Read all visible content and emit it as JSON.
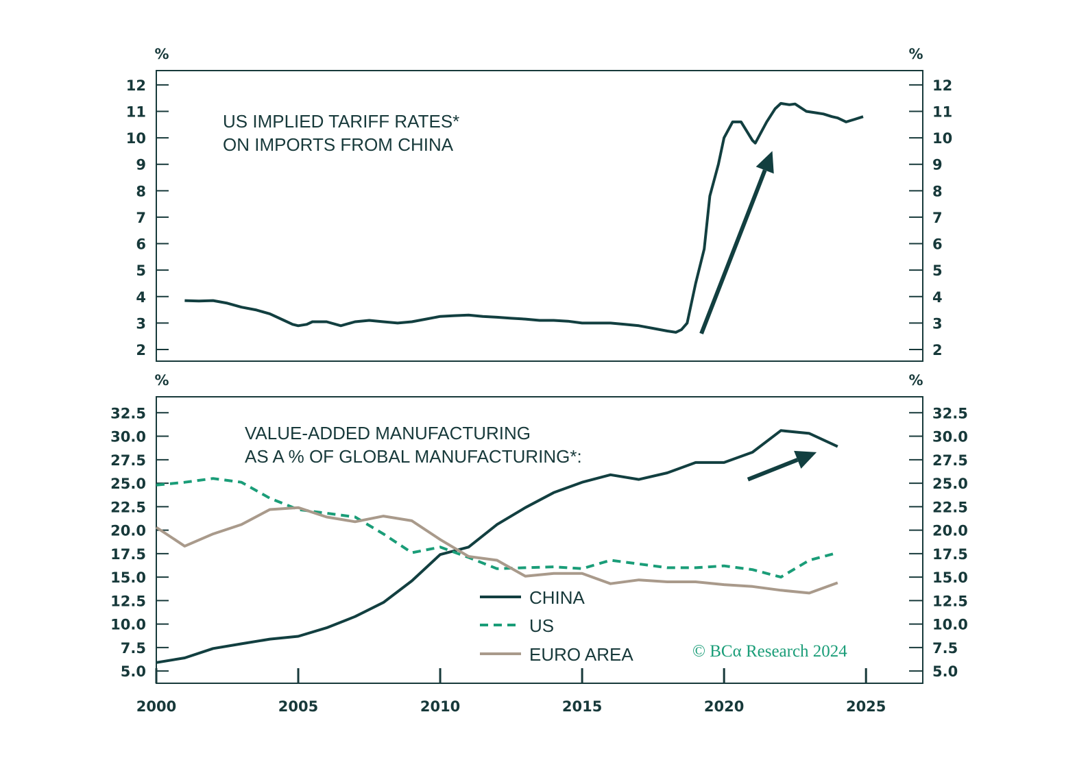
{
  "colors": {
    "dark": "#123f40",
    "china": "#123f40",
    "us": "#1a9d78",
    "euro": "#a99a8b",
    "frame": "#17393a"
  },
  "copyright": "© BCα Research 2024",
  "chart_data": [
    {
      "type": "line",
      "title": [
        "US IMPLIED TARIFF RATES*",
        "ON IMPORTS FROM CHINA"
      ],
      "ylabel_left": "%",
      "ylabel_right": "%",
      "ylim": [
        1.56,
        12.54
      ],
      "xlim": [
        2000,
        2027
      ],
      "yticks": [
        2,
        3,
        4,
        5,
        6,
        7,
        8,
        9,
        10,
        11,
        12
      ],
      "ytick_labels": [
        "2",
        "3",
        "4",
        "5",
        "6",
        "7",
        "8",
        "9",
        "10",
        "11",
        "12"
      ],
      "series": [
        {
          "name": "US implied tariff rate on China",
          "x": [
            2001.0,
            2001.5,
            2002.0,
            2002.5,
            2003,
            2003.5,
            2004,
            2004.5,
            2004.8,
            2005.0,
            2005.3,
            2005.5,
            2006,
            2006.5,
            2007,
            2007.5,
            2008,
            2008.5,
            2009,
            2009.5,
            2010,
            2010.5,
            2011,
            2011.5,
            2012,
            2012.5,
            2013,
            2013.5,
            2014,
            2014.5,
            2015,
            2015.5,
            2016,
            2016.5,
            2017,
            2017.5,
            2018,
            2018.3,
            2018.5,
            2018.7,
            2019,
            2019.3,
            2019.5,
            2019.8,
            2020.0,
            2020.3,
            2020.6,
            2021.0,
            2021.1,
            2021.5,
            2021.8,
            2022.0,
            2022.3,
            2022.5,
            2022.9,
            2023.2,
            2023.5,
            2023.8,
            2024.0,
            2024.3,
            2024.6,
            2024.9
          ],
          "values": [
            3.85,
            3.83,
            3.85,
            3.75,
            3.6,
            3.5,
            3.35,
            3.1,
            2.95,
            2.9,
            2.95,
            3.05,
            3.05,
            2.9,
            3.05,
            3.1,
            3.05,
            3.0,
            3.05,
            3.15,
            3.25,
            3.28,
            3.3,
            3.25,
            3.22,
            3.18,
            3.15,
            3.1,
            3.1,
            3.07,
            3.0,
            3.0,
            3.0,
            2.95,
            2.9,
            2.8,
            2.7,
            2.65,
            2.75,
            3.0,
            4.5,
            5.8,
            7.8,
            9.0,
            10.0,
            10.6,
            10.6,
            9.9,
            9.8,
            10.6,
            11.1,
            11.3,
            11.25,
            11.28,
            11.0,
            10.95,
            10.9,
            10.8,
            10.75,
            10.6,
            10.7,
            10.8
          ]
        }
      ],
      "annotations": [
        {
          "type": "arrow",
          "from": [
            2019.2,
            2.6
          ],
          "to": [
            2021.7,
            9.5
          ]
        }
      ]
    },
    {
      "type": "line",
      "title": [
        "VALUE-ADDED MANUFACTURING",
        "AS A % OF GLOBAL MANUFACTURING*:"
      ],
      "ylabel_left": "%",
      "ylabel_right": "%",
      "ylim": [
        3.7,
        34.2
      ],
      "xlim": [
        2000,
        2027
      ],
      "yticks": [
        5,
        7.5,
        10,
        12.5,
        15,
        17.5,
        20,
        22.5,
        25,
        27.5,
        30,
        32.5
      ],
      "ytick_labels": [
        "5.0",
        "7.5",
        "10.0",
        "12.5",
        "15.0",
        "17.5",
        "20.0",
        "22.5",
        "25.0",
        "27.5",
        "30.0",
        "32.5"
      ],
      "xticks": [
        2000,
        2005,
        2010,
        2015,
        2020,
        2025
      ],
      "xtick_labels": [
        "2000",
        "2005",
        "2010",
        "2015",
        "2020",
        "2025"
      ],
      "x": [
        2000,
        2001,
        2002,
        2003,
        2004,
        2005,
        2006,
        2007,
        2008,
        2009,
        2010,
        2011,
        2012,
        2013,
        2014,
        2015,
        2016,
        2017,
        2018,
        2019,
        2020,
        2021,
        2022,
        2023,
        2024
      ],
      "series": [
        {
          "name": "CHINA",
          "key": "china",
          "dash": false,
          "values": [
            5.9,
            6.4,
            7.4,
            7.9,
            8.4,
            8.7,
            9.6,
            10.8,
            12.3,
            14.6,
            17.4,
            18.2,
            20.6,
            22.4,
            24.0,
            25.1,
            25.9,
            25.4,
            26.1,
            27.2,
            27.2,
            28.3,
            30.6,
            30.3,
            28.9
          ]
        },
        {
          "name": "US",
          "key": "us",
          "dash": true,
          "values": [
            24.8,
            25.1,
            25.5,
            25.1,
            23.4,
            22.2,
            21.8,
            21.4,
            19.6,
            17.6,
            18.2,
            17.1,
            15.9,
            16.0,
            16.1,
            15.9,
            16.8,
            16.4,
            16.0,
            16.0,
            16.2,
            15.8,
            15.0,
            16.8,
            17.6
          ]
        },
        {
          "name": "EURO AREA",
          "key": "euro",
          "dash": false,
          "values": [
            20.3,
            18.3,
            19.6,
            20.6,
            22.2,
            22.4,
            21.4,
            20.9,
            21.5,
            21.0,
            19.0,
            17.2,
            16.8,
            15.1,
            15.4,
            15.4,
            14.3,
            14.7,
            14.5,
            14.5,
            14.2,
            14.0,
            13.6,
            13.3,
            14.4
          ]
        }
      ],
      "annotations": [
        {
          "type": "arrow",
          "from": [
            2020.84,
            25.4
          ],
          "to": [
            2023.26,
            28.3
          ]
        }
      ]
    }
  ]
}
